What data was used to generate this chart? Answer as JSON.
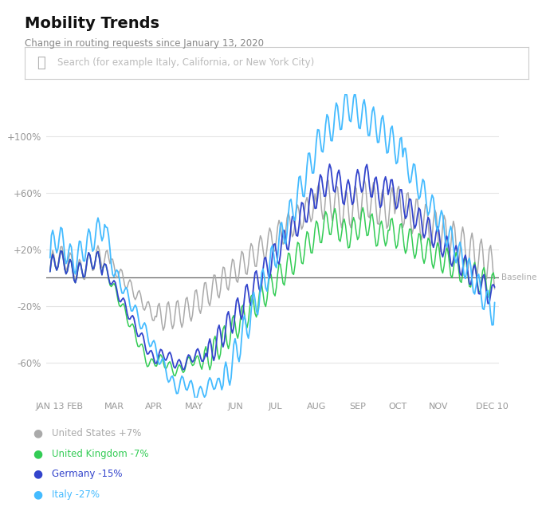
{
  "title": "Mobility Trends",
  "subtitle": "Change in routing requests since January 13, 2020",
  "search_placeholder": "Search (for example Italy, California, or New York City)",
  "baseline_label": "Baseline",
  "x_tick_labels": [
    "JAN 13",
    "FEB",
    "MAR",
    "APR",
    "MAY",
    "JUN",
    "JUL",
    "AUG",
    "SEP",
    "OCT",
    "NOV",
    "DEC 10"
  ],
  "y_tick_labels": [
    "+100%",
    "+60%",
    "+20%",
    "-20%",
    "-60%"
  ],
  "y_tick_values": [
    100,
    60,
    20,
    -20,
    -60
  ],
  "ylim": [
    -85,
    130
  ],
  "colors": {
    "us": "#aaaaaa",
    "uk": "#33cc55",
    "germany": "#3344cc",
    "italy": "#44bbff"
  },
  "legend": [
    {
      "label": "United States +7%",
      "color": "#aaaaaa"
    },
    {
      "label": "United Kingdom -7%",
      "color": "#33cc55"
    },
    {
      "label": "Germany -15%",
      "color": "#3344cc"
    },
    {
      "label": "Italy -27%",
      "color": "#44bbff"
    }
  ],
  "background_color": "#ffffff",
  "grid_color": "#e5e5e5",
  "search_box_color": "#ffffff",
  "search_border_color": "#cccccc",
  "baseline_color": "#666666",
  "title_color": "#111111",
  "subtitle_color": "#888888"
}
